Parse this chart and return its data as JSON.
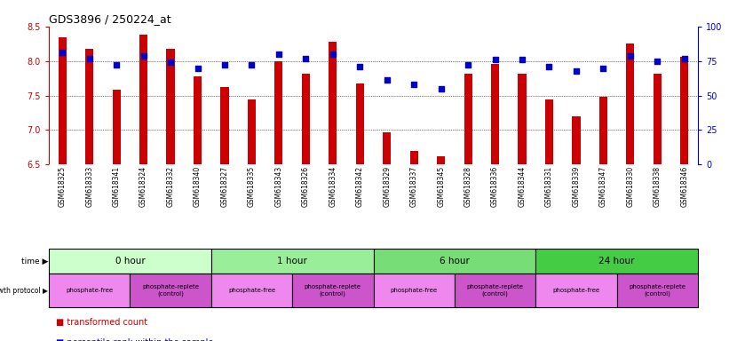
{
  "title": "GDS3896 / 250224_at",
  "samples": [
    "GSM618325",
    "GSM618333",
    "GSM618341",
    "GSM618324",
    "GSM618332",
    "GSM618340",
    "GSM618327",
    "GSM618335",
    "GSM618343",
    "GSM618326",
    "GSM618334",
    "GSM618342",
    "GSM618329",
    "GSM618337",
    "GSM618345",
    "GSM618328",
    "GSM618336",
    "GSM618344",
    "GSM618331",
    "GSM618339",
    "GSM618347",
    "GSM618330",
    "GSM618338",
    "GSM618346"
  ],
  "transformed_count": [
    8.35,
    8.18,
    7.58,
    8.38,
    8.18,
    7.78,
    7.62,
    7.44,
    8.0,
    7.82,
    8.28,
    7.68,
    6.96,
    6.7,
    6.62,
    7.82,
    7.96,
    7.82,
    7.44,
    7.2,
    7.48,
    8.26,
    7.82,
    8.06
  ],
  "percentile_rank": [
    81,
    77,
    72,
    79,
    74,
    70,
    72,
    72,
    80,
    77,
    80,
    71,
    61,
    58,
    55,
    72,
    76,
    76,
    71,
    68,
    70,
    79,
    75,
    77
  ],
  "ylim_left": [
    6.5,
    8.5
  ],
  "ylim_right": [
    0,
    100
  ],
  "yticks_left": [
    6.5,
    7.0,
    7.5,
    8.0,
    8.5
  ],
  "yticks_right": [
    0,
    25,
    50,
    75,
    100
  ],
  "bar_color": "#CC0000",
  "dot_color": "#0000CC",
  "time_groups": [
    {
      "label": "0 hour",
      "start": 0,
      "end": 6,
      "color": "#ccffcc"
    },
    {
      "label": "1 hour",
      "start": 6,
      "end": 12,
      "color": "#99ee99"
    },
    {
      "label": "6 hour",
      "start": 12,
      "end": 18,
      "color": "#77dd77"
    },
    {
      "label": "24 hour",
      "start": 18,
      "end": 24,
      "color": "#44cc44"
    }
  ],
  "protocol_groups": [
    {
      "label": "phosphate-free",
      "start": 0,
      "end": 3,
      "color": "#ee88ee"
    },
    {
      "label": "phosphate-replete\n(control)",
      "start": 3,
      "end": 6,
      "color": "#cc55cc"
    },
    {
      "label": "phosphate-free",
      "start": 6,
      "end": 9,
      "color": "#ee88ee"
    },
    {
      "label": "phosphate-replete\n(control)",
      "start": 9,
      "end": 12,
      "color": "#cc55cc"
    },
    {
      "label": "phosphate-free",
      "start": 12,
      "end": 15,
      "color": "#ee88ee"
    },
    {
      "label": "phosphate-replete\n(control)",
      "start": 15,
      "end": 18,
      "color": "#cc55cc"
    },
    {
      "label": "phosphate-free",
      "start": 18,
      "end": 21,
      "color": "#ee88ee"
    },
    {
      "label": "phosphate-replete\n(control)",
      "start": 21,
      "end": 24,
      "color": "#cc55cc"
    }
  ],
  "left_label_color": "#CC0000",
  "right_label_color": "#0000CC",
  "background_color": "#ffffff",
  "tick_label_area_color": "#cccccc",
  "fig_width": 8.21,
  "fig_height": 3.84,
  "dpi": 100
}
